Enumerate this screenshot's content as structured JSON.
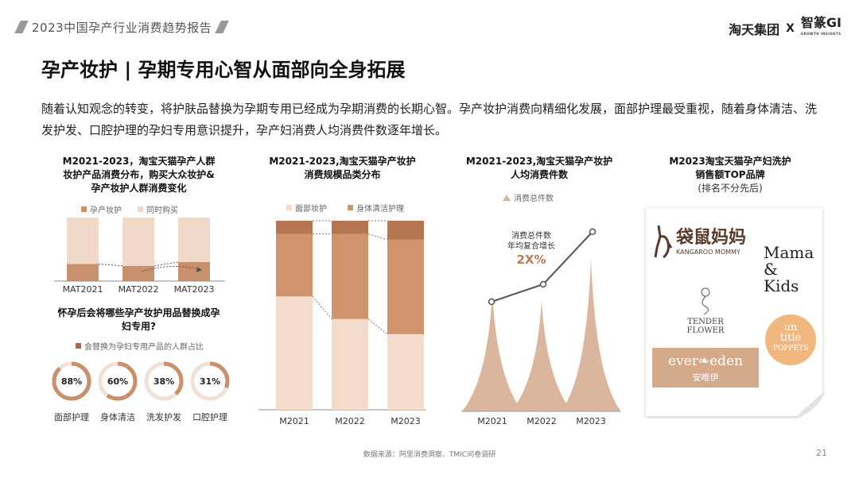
{
  "header": {
    "report_title": "2023中国孕产行业消费趋势报告",
    "logo_left": "淘天集团",
    "logo_x": "X",
    "logo_right": "智篆GI",
    "logo_sub": "GROWTH INSIGHTS"
  },
  "title": "孕产妆护 | 孕期专用心智从面部向全身拓展",
  "description": "随着认知观念的转变，将护肤品替换为孕期专用已经成为孕期消费的长期心智。孕产妆护消费向精细化发展，面部护理最受重视，随着身体清洁、洗发护发、口腔护理的孕妇专用意识提升，孕产妇消费人均消费件数逐年增长。",
  "panel1": {
    "title_lines": [
      "M2021-2023，淘宝天猫孕产人群",
      "妆护产品消费分布，购买大众妆护&",
      "孕产妆护人群消费变化"
    ],
    "legend": [
      "孕产妆护",
      "同时购买"
    ],
    "colors": [
      "#c8906b",
      "#f1d9ca"
    ],
    "chart_data": {
      "type": "bar",
      "categories": [
        "MAT2021",
        "MAT2022",
        "MAT2023"
      ],
      "series": [
        {
          "name": "孕产妆护",
          "values": [
            27,
            24,
            30
          ]
        },
        {
          "name": "同时购买",
          "values": [
            73,
            76,
            70
          ]
        }
      ],
      "ylim": [
        0,
        100
      ]
    },
    "question_lines": [
      "怀孕后会将哪些孕产妆护用品替换成孕",
      "妇专用?"
    ],
    "ring_legend": "会替换为孕妇专用产品的人群占比",
    "rings": [
      {
        "value": "88%",
        "fraction": 0.88,
        "label": "面部护理"
      },
      {
        "value": "60%",
        "fraction": 0.6,
        "label": "身体清洁"
      },
      {
        "value": "38%",
        "fraction": 0.38,
        "label": "洗发护发"
      },
      {
        "value": "31%",
        "fraction": 0.31,
        "label": "口腔护理"
      }
    ]
  },
  "panel2": {
    "title_lines": [
      "M2021-2023,淘宝天猫孕产妆护",
      "消费规模品类分布"
    ],
    "legend": [
      "面部妆护",
      "身体清洁护理"
    ],
    "colors": [
      "#f3dccc",
      "#cf946b",
      "#b47550"
    ],
    "chart_data": {
      "type": "bar",
      "categories": [
        "M2021",
        "M2022",
        "M2023"
      ],
      "series": [
        {
          "name": "面部妆护",
          "values": [
            60,
            48,
            40
          ]
        },
        {
          "name": "身体清洁护理",
          "values": [
            33,
            45,
            50
          ]
        },
        {
          "name": "",
          "values": [
            7,
            7,
            10
          ]
        }
      ],
      "ylim": [
        0,
        100
      ]
    }
  },
  "panel3": {
    "title_lines": [
      "M2021-2023,淘宝天猫孕产妆护",
      "人均消费件数"
    ],
    "legend": [
      "消费总件数"
    ],
    "colors": [
      "#d9b69c",
      "#555555"
    ],
    "annotation_lines": [
      "消费总件数",
      "年均复合增长"
    ],
    "annotation_value": "2X%",
    "chart_data": {
      "type": "line",
      "categories": [
        "M2021",
        "M2022",
        "M2023"
      ],
      "series": [
        {
          "name": "消费总件数",
          "values": [
            1.0,
            1.18,
            1.72
          ]
        }
      ],
      "peaks": [
        0.62,
        0.58,
        0.8
      ]
    }
  },
  "panel4": {
    "title_lines": [
      "M2023淘宝天猫孕产妇洗护",
      "销售额TOP品牌"
    ],
    "subtitle": "(排名不分先后)",
    "brands": {
      "kangaroo_cn": "袋鼠妈妈",
      "kangaroo_en": "KANGAROO MOMMY",
      "mama_kids": [
        "Mama",
        "&",
        "Kids"
      ],
      "tender_flower": "TENDER FLOWER",
      "untitle_poppets": [
        "un",
        "title",
        "POPPETS"
      ],
      "evereden": "ever❧eden",
      "evereden_cn": "安唯伊"
    }
  },
  "footer": {
    "source": "数据来源：阿里消费洞察、TMIC问卷调研",
    "page": "21"
  }
}
